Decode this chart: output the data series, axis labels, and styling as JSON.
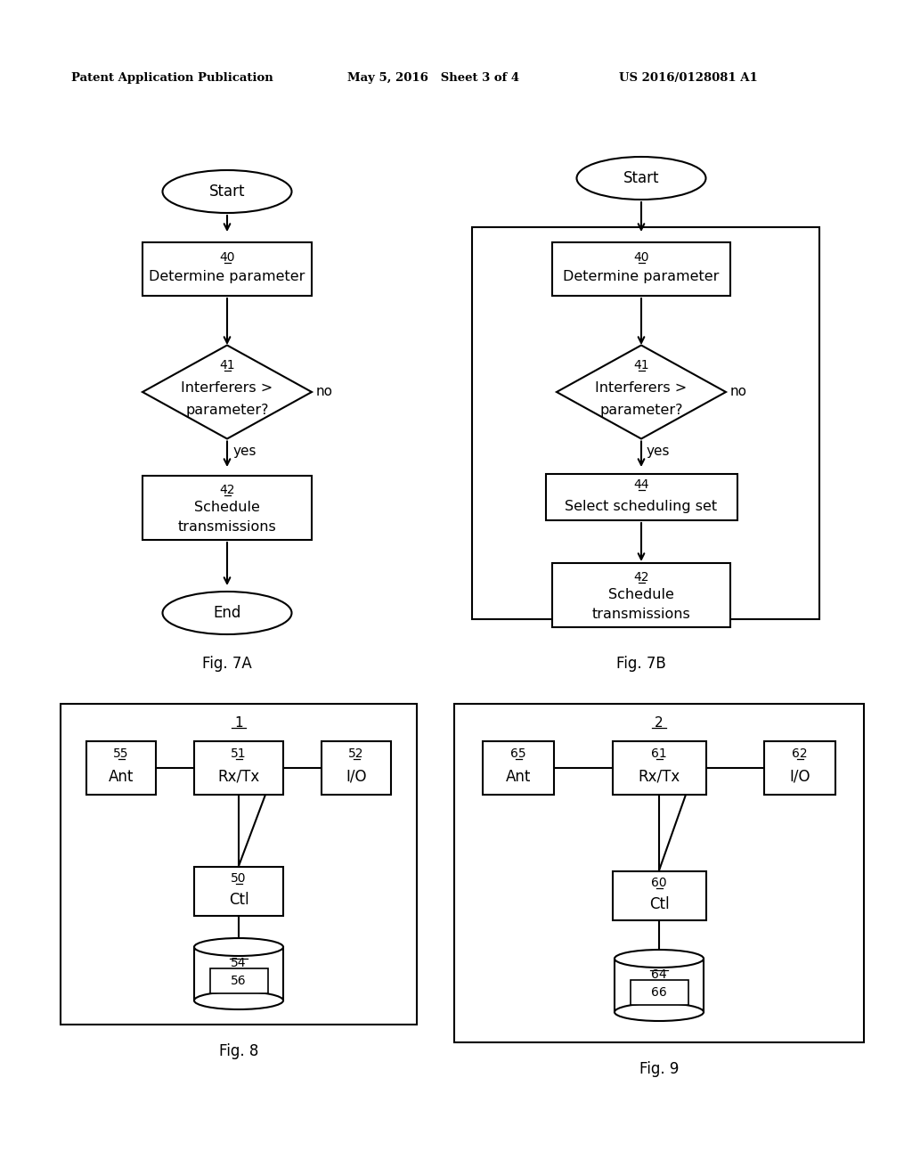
{
  "header_left": "Patent Application Publication",
  "header_mid": "May 5, 2016   Sheet 3 of 4",
  "header_right": "US 2016/0128081 A1",
  "fig7A_label": "Fig. 7A",
  "fig7B_label": "Fig. 7B",
  "fig8_label": "Fig. 8",
  "fig9_label": "Fig. 9",
  "bg_color": "#ffffff",
  "line_color": "#000000",
  "text_color": "#000000"
}
